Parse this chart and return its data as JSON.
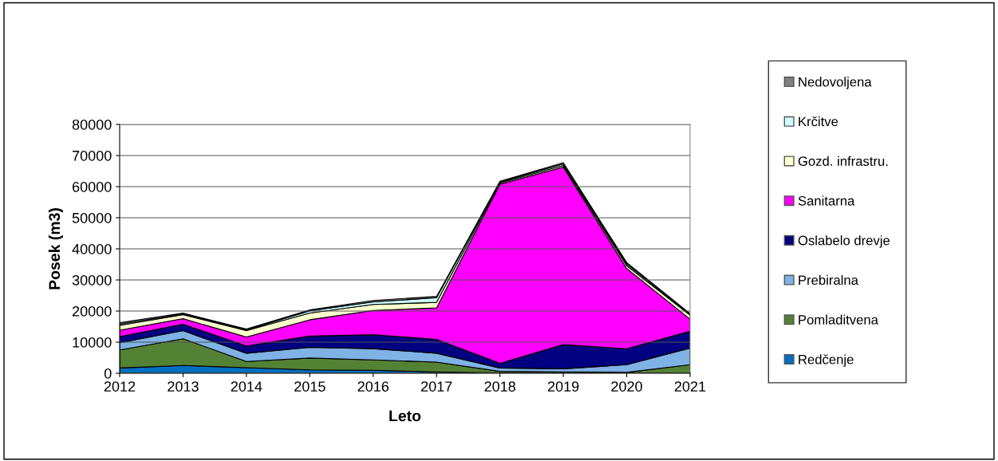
{
  "chart_data": {
    "type": "area",
    "stacked": true,
    "xlabel": "Leto",
    "ylabel": "Posek (m3)",
    "categories": [
      "2012",
      "2013",
      "2014",
      "2015",
      "2016",
      "2017",
      "2018",
      "2019",
      "2020",
      "2021"
    ],
    "series": [
      {
        "name": "Redčenje",
        "color": "#0070c0",
        "values": [
          1700,
          2500,
          1800,
          1100,
          950,
          450,
          100,
          100,
          100,
          100
        ]
      },
      {
        "name": "Pomladitvena",
        "color": "#548235",
        "values": [
          5800,
          8600,
          2000,
          3800,
          3350,
          3150,
          500,
          350,
          200,
          2650
        ]
      },
      {
        "name": "Prebiralna",
        "color": "#7fb2e5",
        "values": [
          2300,
          2600,
          2600,
          3450,
          3600,
          2850,
          1100,
          1000,
          2450,
          5350
        ]
      },
      {
        "name": "Oslabelo drevje",
        "color": "#000080",
        "values": [
          2000,
          2050,
          2400,
          3600,
          4500,
          4450,
          1500,
          7750,
          5150,
          5400
        ]
      },
      {
        "name": "Sanitarna",
        "color": "#ff00ff",
        "values": [
          2050,
          1800,
          2850,
          5250,
          7800,
          10100,
          57600,
          57100,
          25800,
          3900
        ]
      },
      {
        "name": "Gozd. infrastru.",
        "color": "#ffffcc",
        "values": [
          1550,
          1300,
          2050,
          2150,
          1900,
          1800,
          400,
          500,
          900,
          1300
        ]
      },
      {
        "name": "Krčitve",
        "color": "#ccffff",
        "values": [
          350,
          250,
          250,
          750,
          850,
          1500,
          300,
          500,
          600,
          300
        ]
      },
      {
        "name": "Nedovoljena",
        "color": "#808080",
        "values": [
          500,
          250,
          250,
          250,
          450,
          400,
          200,
          400,
          400,
          200
        ]
      }
    ],
    "ylim": [
      0,
      80000
    ],
    "yticks": [
      0,
      10000,
      20000,
      30000,
      40000,
      50000,
      60000,
      70000,
      80000
    ],
    "grid": "y",
    "legend": "right"
  }
}
